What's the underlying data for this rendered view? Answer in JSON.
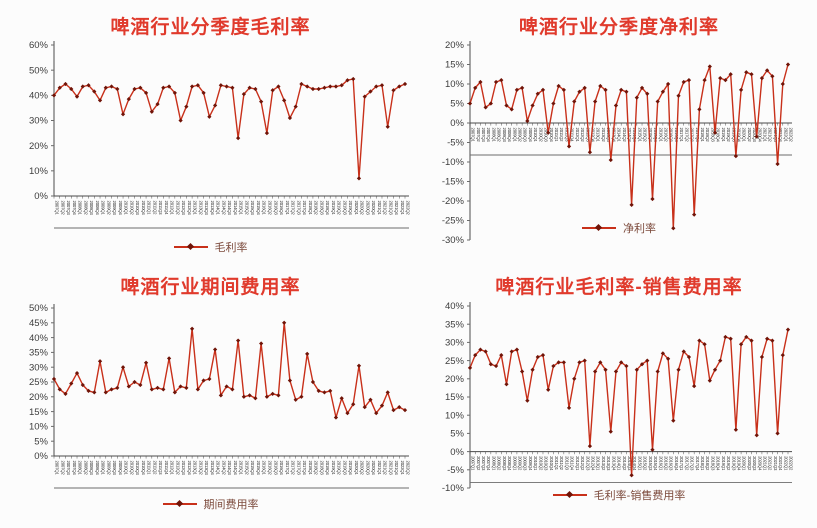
{
  "figure": {
    "description_titles": [
      "啤酒行业分季度毛利率",
      "啤酒行业分季度净利率",
      "啤酒行业期间费用率",
      "啤酒行业毛利率-销售费用率"
    ]
  },
  "colors": {
    "title_red": "#e03a2c",
    "line_red": "#c8301a",
    "marker_dark": "#701408",
    "legend_text": "#7c4a3c",
    "axis_text": "#3d3d3d",
    "axis_line": "#6b6b6b",
    "zero_line": "#4a4a4a",
    "background": "#fcfcfc"
  },
  "chart_data": [
    {
      "type": "line",
      "title": "啤酒行业分季度毛利率",
      "legend": "毛利率",
      "ylim": [
        0,
        60
      ],
      "ytick_step": 10,
      "y_ticks": [
        "60%",
        "50%",
        "40%",
        "30%",
        "20%",
        "10%",
        "0%"
      ],
      "grid": false,
      "legend_position": "bottom-center",
      "categories": [
        "2007Q1",
        "2007Q2",
        "2007Q3",
        "2007Q4",
        "2008Q1",
        "2008Q2",
        "2008Q3",
        "2008Q4",
        "2009Q1",
        "2009Q2",
        "2009Q3",
        "2009Q4",
        "2010Q1",
        "2010Q2",
        "2010Q3",
        "2010Q4",
        "2011Q1",
        "2011Q2",
        "2011Q3",
        "2011Q4",
        "2012Q1",
        "2012Q2",
        "2012Q3",
        "2012Q4",
        "2013Q1",
        "2013Q2",
        "2013Q3",
        "2013Q4",
        "2014Q1",
        "2014Q2",
        "2014Q3",
        "2014Q4",
        "2015Q1",
        "2015Q2",
        "2015Q3",
        "2015Q4",
        "2016Q1",
        "2016Q2",
        "2016Q3",
        "2016Q4",
        "2017Q1",
        "2017Q2",
        "2017Q3",
        "2017Q4",
        "2018Q1",
        "2018Q2",
        "2018Q3",
        "2018Q4",
        "2019Q1",
        "2019Q2",
        "2019Q3",
        "2019Q4",
        "2020Q1",
        "2020Q2",
        "2020Q3",
        "2020Q4",
        "2021Q1",
        "2021Q2",
        "2021Q3",
        "2021Q4",
        "2022Q1",
        "2022Q2"
      ],
      "values": [
        40,
        43,
        44.5,
        42.5,
        39.5,
        43.5,
        44,
        41.5,
        38,
        43,
        43.5,
        42.5,
        32.5,
        38.5,
        42.5,
        43,
        41,
        33.5,
        36.5,
        43,
        43.5,
        41,
        30,
        35.5,
        43.5,
        44,
        41,
        31.5,
        36,
        44,
        43.5,
        43,
        23,
        40.5,
        43,
        42.5,
        37.5,
        25,
        42,
        43.5,
        38,
        31,
        35.5,
        44.5,
        43.5,
        42.5,
        42.5,
        43,
        43.5,
        43.5,
        44,
        46,
        46.5,
        7,
        39.5,
        41.5,
        43.5,
        44,
        27.5,
        42,
        43.5,
        44.5
      ]
    },
    {
      "type": "line",
      "title": "啤酒行业分季度净利率",
      "legend": "净利率",
      "ylim": [
        -30,
        20
      ],
      "ytick_step": 5,
      "y_ticks": [
        "20%",
        "15%",
        "10%",
        "5%",
        "0%",
        "-5%",
        "-10%",
        "-15%",
        "-20%",
        "-25%",
        "-30%"
      ],
      "grid": false,
      "legend_position": "bottom-center",
      "categories": [
        "2007Q1",
        "2007Q2",
        "2007Q3",
        "2007Q4",
        "2008Q1",
        "2008Q2",
        "2008Q3",
        "2008Q4",
        "2009Q1",
        "2009Q2",
        "2009Q3",
        "2009Q4",
        "2010Q1",
        "2010Q2",
        "2010Q3",
        "2010Q4",
        "2011Q1",
        "2011Q2",
        "2011Q3",
        "2011Q4",
        "2012Q1",
        "2012Q2",
        "2012Q3",
        "2012Q4",
        "2013Q1",
        "2013Q2",
        "2013Q3",
        "2013Q4",
        "2014Q1",
        "2014Q2",
        "2014Q3",
        "2014Q4",
        "2015Q1",
        "2015Q2",
        "2015Q3",
        "2015Q4",
        "2016Q1",
        "2016Q2",
        "2016Q3",
        "2016Q4",
        "2017Q1",
        "2017Q2",
        "2017Q3",
        "2017Q4",
        "2018Q1",
        "2018Q2",
        "2018Q3",
        "2018Q4",
        "2019Q1",
        "2019Q2",
        "2019Q3",
        "2019Q4",
        "2020Q1",
        "2020Q2",
        "2020Q3",
        "2020Q4",
        "2021Q1",
        "2021Q2",
        "2021Q3",
        "2021Q4",
        "2022Q1",
        "2022Q2"
      ],
      "values": [
        5,
        9,
        10.5,
        4,
        5,
        10.5,
        11,
        4.5,
        3.5,
        8.5,
        9,
        0.5,
        4.5,
        7.5,
        8.5,
        -2.5,
        5,
        9.5,
        8.5,
        -6,
        5.5,
        8,
        9,
        -7.5,
        5.5,
        9.5,
        8.5,
        -9.5,
        4.5,
        8.5,
        8,
        -21,
        6.5,
        9,
        7.5,
        -19.5,
        5.5,
        8,
        10,
        -27,
        7,
        10.5,
        11,
        -23.5,
        3.5,
        11,
        14.5,
        -2.5,
        11.5,
        11,
        12.5,
        -8.5,
        8.5,
        13,
        12.5,
        -3.5,
        11.5,
        13.5,
        12,
        -10.5,
        10,
        15
      ]
    },
    {
      "type": "line",
      "title": "啤酒行业期间费用率",
      "legend": "期间费用率",
      "ylim": [
        0,
        50
      ],
      "ytick_step": 5,
      "y_ticks": [
        "50%",
        "45%",
        "40%",
        "35%",
        "30%",
        "25%",
        "20%",
        "15%",
        "10%",
        "5%",
        "0%"
      ],
      "grid": false,
      "legend_position": "bottom-center",
      "categories": [
        "2007Q1",
        "2007Q2",
        "2007Q3",
        "2007Q4",
        "2008Q1",
        "2008Q2",
        "2008Q3",
        "2008Q4",
        "2009Q1",
        "2009Q2",
        "2009Q3",
        "2009Q4",
        "2010Q1",
        "2010Q2",
        "2010Q3",
        "2010Q4",
        "2011Q1",
        "2011Q2",
        "2011Q3",
        "2011Q4",
        "2012Q1",
        "2012Q2",
        "2012Q3",
        "2012Q4",
        "2013Q1",
        "2013Q2",
        "2013Q3",
        "2013Q4",
        "2014Q1",
        "2014Q2",
        "2014Q3",
        "2014Q4",
        "2015Q1",
        "2015Q2",
        "2015Q3",
        "2015Q4",
        "2016Q1",
        "2016Q2",
        "2016Q3",
        "2016Q4",
        "2017Q1",
        "2017Q2",
        "2017Q3",
        "2017Q4",
        "2018Q1",
        "2018Q2",
        "2018Q3",
        "2018Q4",
        "2019Q1",
        "2019Q2",
        "2019Q3",
        "2019Q4",
        "2020Q1",
        "2020Q2",
        "2020Q3",
        "2020Q4",
        "2021Q1",
        "2021Q2",
        "2021Q3",
        "2021Q4",
        "2022Q1",
        "2022Q2"
      ],
      "values": [
        26,
        22.5,
        21,
        24.5,
        28,
        24,
        22,
        21.5,
        32,
        21.5,
        22.5,
        23,
        30,
        23.5,
        25,
        24,
        31.5,
        22.5,
        23,
        22.5,
        33,
        21.5,
        23.5,
        23,
        43,
        22.5,
        25.5,
        26,
        36,
        20.5,
        23.5,
        22.5,
        39,
        20,
        20.5,
        19.5,
        38,
        20,
        21,
        20.5,
        45,
        25.5,
        19,
        20,
        34.5,
        25,
        22,
        21.5,
        22,
        13,
        19.5,
        14.5,
        17.5,
        30.5,
        16.5,
        19,
        14.5,
        17,
        21.5,
        15.5,
        16.5,
        15.5
      ]
    },
    {
      "type": "line",
      "title": "啤酒行业毛利率-销售费用率",
      "legend": "毛利率-销售费用率",
      "ylim": [
        -10,
        40
      ],
      "ytick_step": 5,
      "y_ticks": [
        "40%",
        "35%",
        "30%",
        "25%",
        "20%",
        "15%",
        "10%",
        "5%",
        "0%",
        "-5%",
        "-10%"
      ],
      "grid": false,
      "legend_position": "bottom-center",
      "categories": [
        "2007Q1",
        "2007Q2",
        "2007Q3",
        "2007Q4",
        "2008Q1",
        "2008Q2",
        "2008Q3",
        "2008Q4",
        "2009Q1",
        "2009Q2",
        "2009Q3",
        "2009Q4",
        "2010Q1",
        "2010Q2",
        "2010Q3",
        "2010Q4",
        "2011Q1",
        "2011Q2",
        "2011Q3",
        "2011Q4",
        "2012Q1",
        "2012Q2",
        "2012Q3",
        "2012Q4",
        "2013Q1",
        "2013Q2",
        "2013Q3",
        "2013Q4",
        "2014Q1",
        "2014Q2",
        "2014Q3",
        "2014Q4",
        "2015Q1",
        "2015Q2",
        "2015Q3",
        "2015Q4",
        "2016Q1",
        "2016Q2",
        "2016Q3",
        "2016Q4",
        "2017Q1",
        "2017Q2",
        "2017Q3",
        "2017Q4",
        "2018Q1",
        "2018Q2",
        "2018Q3",
        "2018Q4",
        "2019Q1",
        "2019Q2",
        "2019Q3",
        "2019Q4",
        "2020Q1",
        "2020Q2",
        "2020Q3",
        "2020Q4",
        "2021Q1",
        "2021Q2",
        "2021Q3",
        "2021Q4",
        "2022Q1",
        "2022Q2"
      ],
      "values": [
        23,
        26.5,
        28,
        27.5,
        24,
        23.5,
        26.5,
        18.5,
        27.5,
        28,
        22,
        14,
        22.5,
        26,
        26.5,
        17,
        23.5,
        24.5,
        24.5,
        12,
        20,
        24.5,
        25,
        1.5,
        22,
        24.5,
        22.5,
        5.5,
        22,
        24.5,
        23.5,
        -6.5,
        22.5,
        24,
        25,
        0.5,
        22,
        27,
        25.5,
        8.5,
        22.5,
        27.5,
        26,
        18,
        30.5,
        29.5,
        19.5,
        22.5,
        25,
        31.5,
        31,
        6,
        29.5,
        31.5,
        30.5,
        4.5,
        26,
        31,
        30.5,
        5,
        26.5,
        33.5
      ]
    }
  ]
}
